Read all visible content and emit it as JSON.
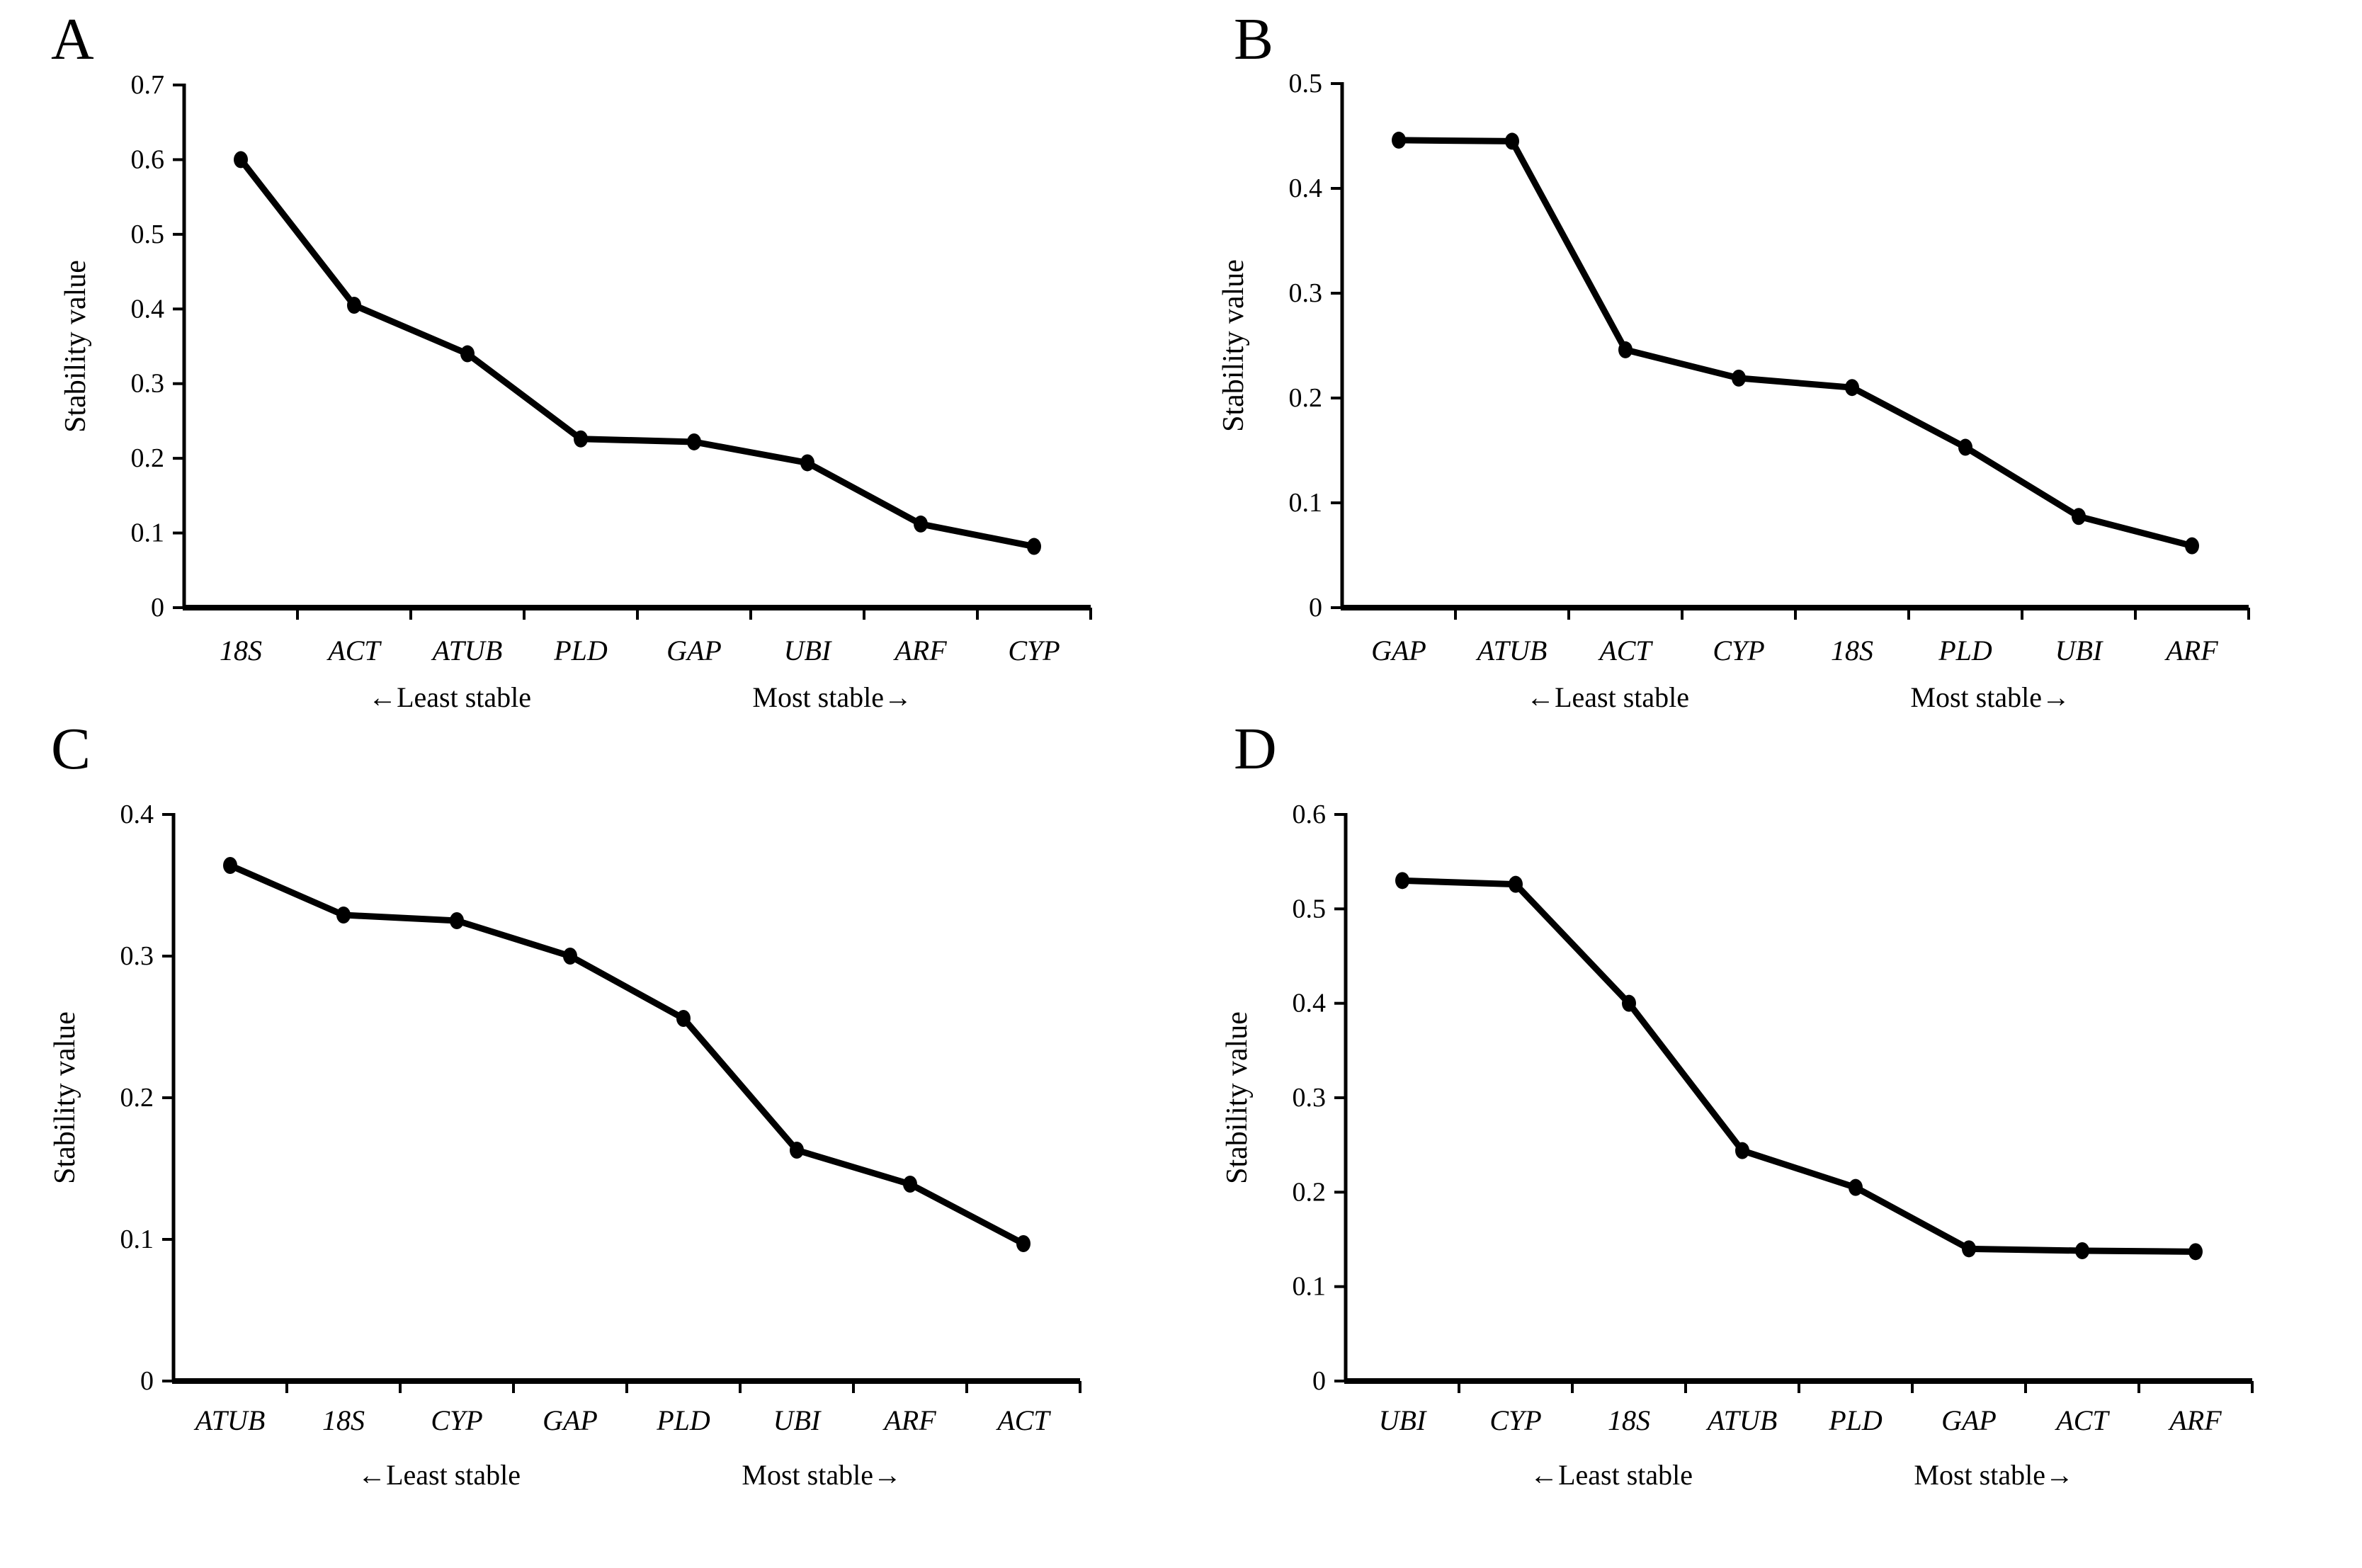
{
  "figure": {
    "background_color": "#ffffff",
    "line_color": "#000000",
    "ylabel": "Stability value",
    "annotation_left": "←Least stable",
    "annotation_right": "Most stable→"
  },
  "chart_data": [
    {
      "panel": "A",
      "type": "line",
      "ylabel": "Stability value",
      "categories": [
        "18S",
        "ACT",
        "ATUB",
        "PLD",
        "GAP",
        "UBI",
        "ARF",
        "CYP"
      ],
      "values": [
        0.6,
        0.405,
        0.34,
        0.226,
        0.222,
        0.194,
        0.112,
        0.082
      ],
      "ylim": [
        0,
        0.7
      ],
      "ytick_step": 0.1,
      "grid": false,
      "marker": "circle",
      "annotations": {
        "left": "←Least stable",
        "right": "Most stable→"
      }
    },
    {
      "panel": "B",
      "type": "line",
      "ylabel": "Stability value",
      "categories": [
        "GAP",
        "ATUB",
        "ACT",
        "CYP",
        "18S",
        "PLD",
        "UBI",
        "ARF"
      ],
      "values": [
        0.446,
        0.445,
        0.246,
        0.219,
        0.21,
        0.153,
        0.087,
        0.059
      ],
      "ylim": [
        0,
        0.5
      ],
      "ytick_step": 0.1,
      "grid": false,
      "marker": "circle",
      "annotations": {
        "left": "←Least stable",
        "right": "Most stable→"
      }
    },
    {
      "panel": "C",
      "type": "line",
      "ylabel": "Stability value",
      "categories": [
        "ATUB",
        "18S",
        "CYP",
        "GAP",
        "PLD",
        "UBI",
        "ARF",
        "ACT"
      ],
      "values": [
        0.364,
        0.329,
        0.325,
        0.3,
        0.256,
        0.163,
        0.139,
        0.097
      ],
      "ylim": [
        0,
        0.4
      ],
      "ytick_step": 0.1,
      "grid": false,
      "marker": "circle",
      "annotations": {
        "left": "←Least stable",
        "right": "Most stable→"
      }
    },
    {
      "panel": "D",
      "type": "line",
      "ylabel": "Stability value",
      "categories": [
        "UBI",
        "CYP",
        "18S",
        "ATUB",
        "PLD",
        "GAP",
        "ACT",
        "ARF"
      ],
      "values": [
        0.53,
        0.526,
        0.4,
        0.244,
        0.205,
        0.14,
        0.138,
        0.137
      ],
      "ylim": [
        0,
        0.6
      ],
      "ytick_step": 0.1,
      "grid": false,
      "marker": "circle",
      "annotations": {
        "left": "←Least stable",
        "right": "Most stable→"
      }
    }
  ]
}
